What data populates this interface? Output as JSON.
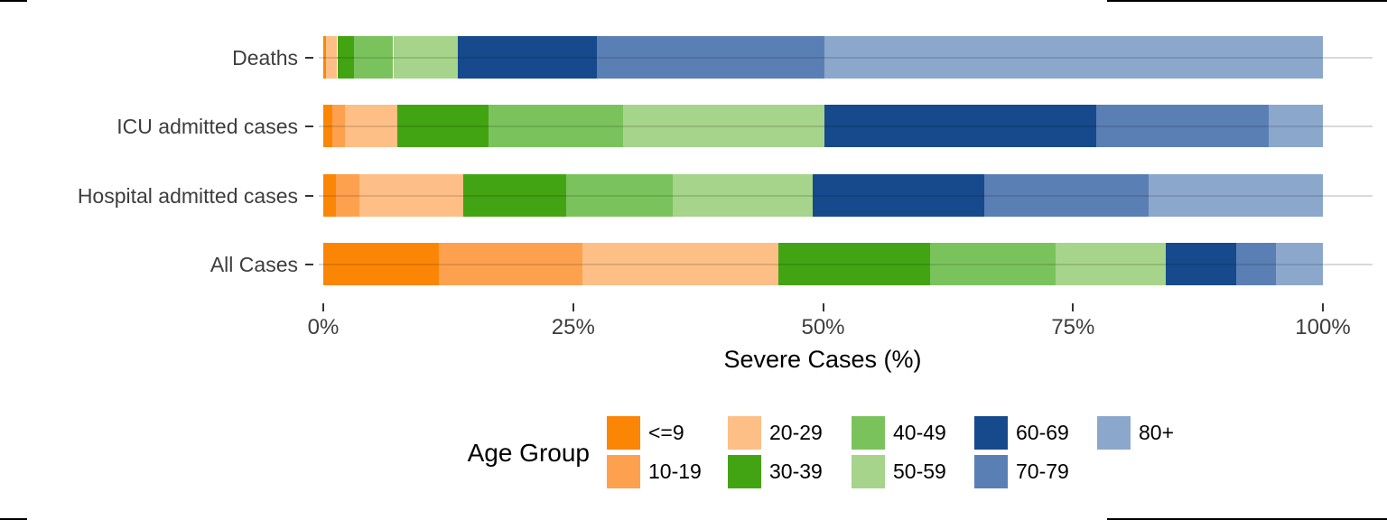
{
  "chart_data": {
    "type": "bar",
    "orientation": "horizontal-stacked",
    "title": "",
    "xlabel": "Severe Cases (%)",
    "ylabel": "",
    "xlim": [
      0,
      100
    ],
    "grid": "horizontal-only",
    "x_ticks": [
      {
        "label": "0%",
        "value": 0
      },
      {
        "label": "25%",
        "value": 25
      },
      {
        "label": "50%",
        "value": 50
      },
      {
        "label": "75%",
        "value": 75
      },
      {
        "label": "100%",
        "value": 100
      }
    ],
    "categories": [
      "Deaths",
      "ICU admitted cases",
      "Hospital admitted cases",
      "All Cases"
    ],
    "legend_title": "Age Group",
    "legend_position": "bottom",
    "series": [
      {
        "name": "<=9",
        "color": "#FB8606",
        "values": [
          0.3,
          0.9,
          1.3,
          11.6
        ]
      },
      {
        "name": "10-19",
        "color": "#FDA14F",
        "values": [
          0.0,
          1.3,
          2.3,
          14.3
        ]
      },
      {
        "name": "20-29",
        "color": "#FDBF86",
        "values": [
          1.1,
          5.2,
          10.4,
          19.6
        ]
      },
      {
        "name": "30-39",
        "color": "#43A413",
        "values": [
          1.7,
          9.1,
          10.3,
          15.2
        ]
      },
      {
        "name": "40-49",
        "color": "#7AC35C",
        "values": [
          3.9,
          13.5,
          10.7,
          12.6
        ]
      },
      {
        "name": "50-59",
        "color": "#A6D48A",
        "values": [
          6.5,
          20.1,
          14.0,
          11.0
        ]
      },
      {
        "name": "60-69",
        "color": "#164A8C",
        "values": [
          13.9,
          27.2,
          17.1,
          7.0
        ]
      },
      {
        "name": "70-79",
        "color": "#5A7FB4",
        "values": [
          22.7,
          17.3,
          16.5,
          4.0
        ]
      },
      {
        "name": "80+",
        "color": "#8CA7CC",
        "values": [
          49.9,
          5.4,
          17.4,
          4.7
        ]
      }
    ]
  }
}
